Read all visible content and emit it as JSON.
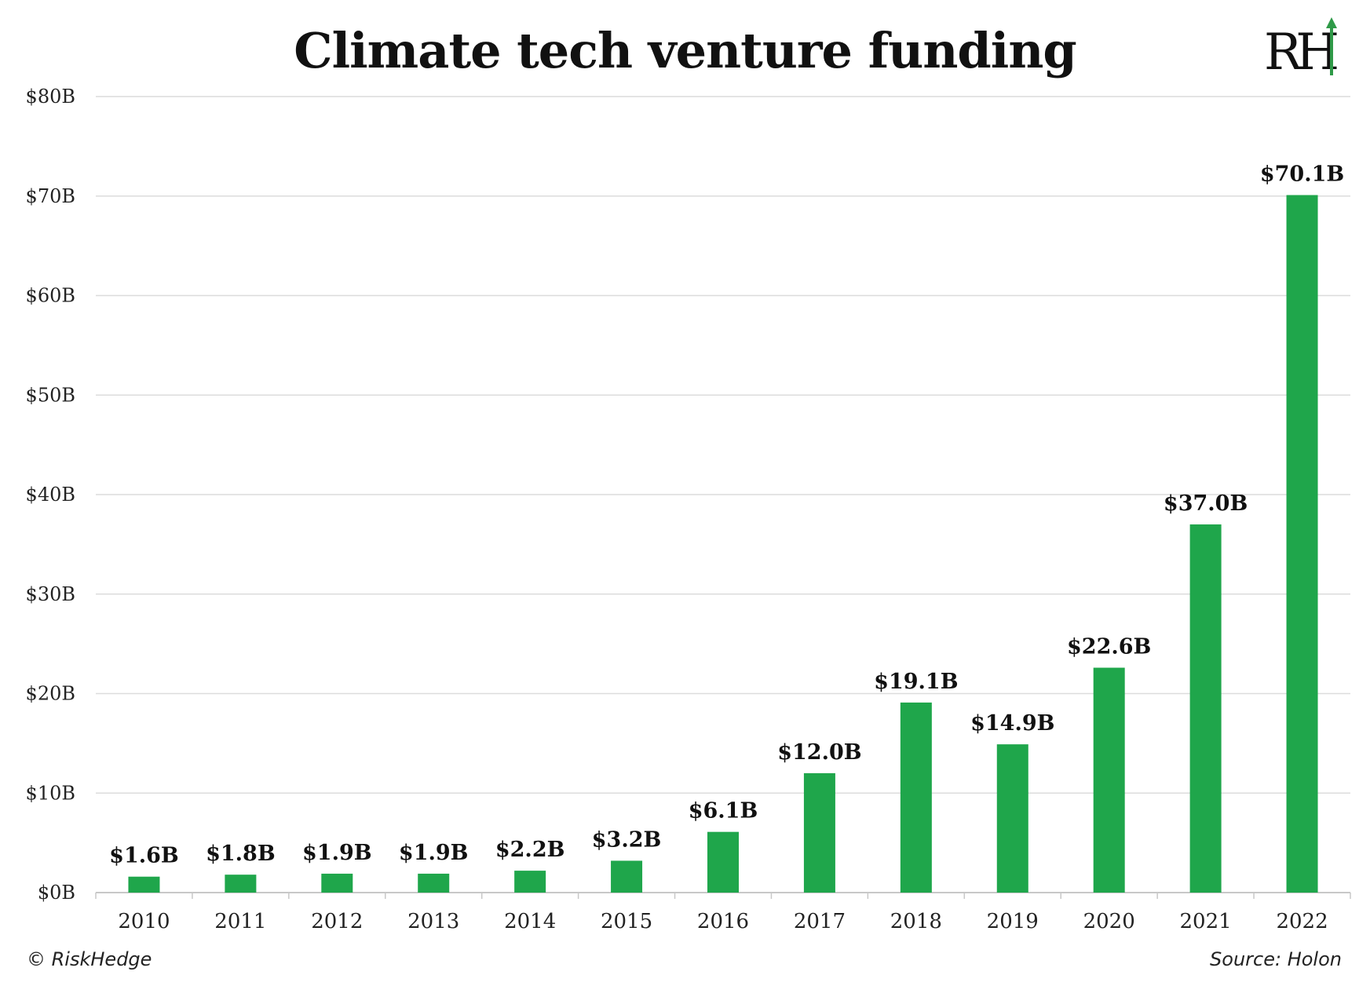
{
  "chart_data": {
    "type": "bar",
    "title": "Climate tech venture funding",
    "categories": [
      "2010",
      "2011",
      "2012",
      "2013",
      "2014",
      "2015",
      "2016",
      "2017",
      "2018",
      "2019",
      "2020",
      "2021",
      "2022"
    ],
    "values": [
      1.6,
      1.8,
      1.9,
      1.9,
      2.2,
      3.2,
      6.1,
      12.0,
      19.1,
      14.9,
      22.6,
      37.0,
      70.1
    ],
    "data_labels": [
      "$1.6B",
      "$1.8B",
      "$1.9B",
      "$1.9B",
      "$2.2B",
      "$3.2B",
      "$6.1B",
      "$12.0B",
      "$19.1B",
      "$14.9B",
      "$22.6B",
      "$37.0B",
      "$70.1B"
    ],
    "yticks": [
      0,
      10,
      20,
      30,
      40,
      50,
      60,
      70,
      80
    ],
    "ytick_labels": [
      "$0B",
      "$10B",
      "$20B",
      "$30B",
      "$40B",
      "$50B",
      "$60B",
      "$70B",
      "$80B"
    ],
    "ylim": [
      0,
      80
    ],
    "xlabel": "",
    "ylabel": "",
    "grid": true,
    "bar_color": "#1fa64b"
  },
  "branding": {
    "logo_text": "RH",
    "copyright": "© RiskHedge",
    "source": "Source: Holon"
  },
  "colors": {
    "bar": "#1fa64b",
    "grid": "#dcdcdc",
    "logo_green": "#2f9a48"
  }
}
